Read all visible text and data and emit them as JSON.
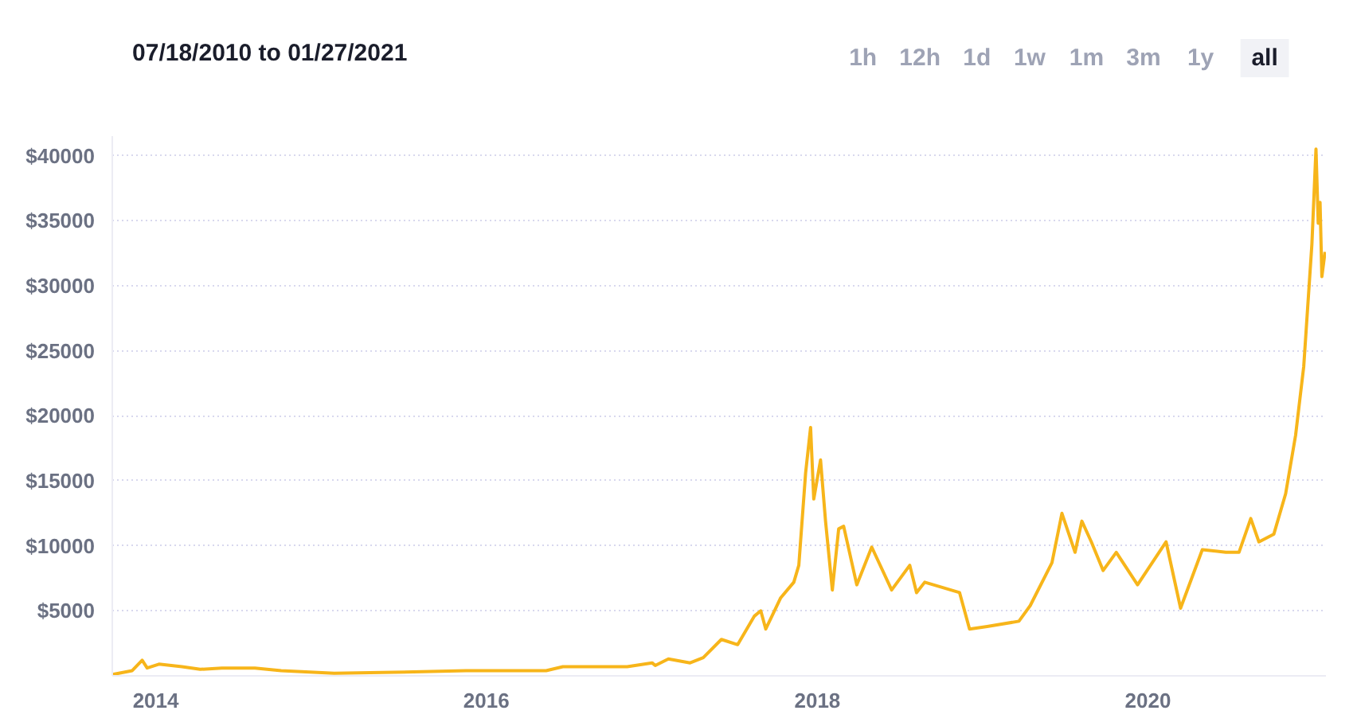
{
  "chart_data": {
    "type": "line",
    "title": "07/18/2010 to 01/27/2021",
    "annotations": [
      "1h",
      "12h",
      "1d",
      "1w",
      "1m",
      "3m",
      "1y",
      "all"
    ],
    "x": [
      "2013-09-27",
      "2013-11-10",
      "2013-12-02",
      "2013-12-13",
      "2014-01-08",
      "2014-02-28",
      "2014-04-09",
      "2014-05-27",
      "2014-08-08",
      "2014-10-05",
      "2015-01-30",
      "2015-07-24",
      "2015-11-17",
      "2016-05-12",
      "2016-06-18",
      "2016-11-07",
      "2017-01-01",
      "2017-01-08",
      "2017-02-06",
      "2017-03-26",
      "2017-04-24",
      "2017-06-03",
      "2017-07-09",
      "2017-08-15",
      "2017-08-29",
      "2017-09-09",
      "2017-10-12",
      "2017-11-10",
      "2017-11-21",
      "2017-12-06",
      "2017-12-17",
      "2017-12-24",
      "2018-01-08",
      "2018-01-19",
      "2018-02-03",
      "2018-02-17",
      "2018-02-28",
      "2018-03-29",
      "2018-05-01",
      "2018-06-14",
      "2018-07-24",
      "2018-08-08",
      "2018-08-26",
      "2018-11-11",
      "2018-12-03",
      "2019-01-11",
      "2019-03-22",
      "2019-04-16",
      "2019-06-03",
      "2019-06-25",
      "2019-07-24",
      "2019-08-08",
      "2019-08-29",
      "2019-09-24",
      "2019-10-23",
      "2019-12-09",
      "2020-02-10",
      "2020-03-13",
      "2020-04-30",
      "2020-06-21",
      "2020-07-20",
      "2020-08-15",
      "2020-09-02",
      "2020-10-05",
      "2020-10-31",
      "2020-11-22",
      "2020-12-10",
      "2020-12-28",
      "2021-01-06",
      "2021-01-11",
      "2021-01-15",
      "2021-01-19",
      "2021-01-26"
    ],
    "series": [
      {
        "color": "#f7b51a",
        "values": [
          100,
          400,
          1200,
          600,
          900,
          700,
          500,
          600,
          600,
          400,
          200,
          300,
          400,
          400,
          700,
          700,
          1000,
          800,
          1300,
          1000,
          1400,
          2800,
          2400,
          4600,
          5000,
          3600,
          6000,
          7200,
          8500,
          15600,
          19100,
          13600,
          16600,
          11900,
          6600,
          11300,
          11500,
          7000,
          9900,
          6600,
          8500,
          6400,
          7200,
          6400,
          3600,
          3800,
          4200,
          5400,
          8700,
          12500,
          9500,
          11900,
          10300,
          8100,
          9500,
          7000,
          10300,
          5200,
          9700,
          9500,
          9500,
          12100,
          10300,
          10900,
          14000,
          18500,
          23800,
          33200,
          40500,
          34800,
          36400,
          30700,
          32600
        ]
      }
    ],
    "xlim": [
      "2013-09-27",
      "2021-01-28"
    ],
    "xticks": [
      {
        "value": "2014-01-01",
        "label": "2014"
      },
      {
        "value": "2016-01-01",
        "label": "2016"
      },
      {
        "value": "2018-01-01",
        "label": "2018"
      },
      {
        "value": "2020-01-01",
        "label": "2020"
      }
    ],
    "ylim": [
      0,
      41500
    ],
    "yticks": [
      {
        "value": 5000,
        "label": "$5000"
      },
      {
        "value": 10000,
        "label": "$10000"
      },
      {
        "value": 15000,
        "label": "$15000"
      },
      {
        "value": 20000,
        "label": "$20000"
      },
      {
        "value": 25000,
        "label": "$25000"
      },
      {
        "value": 30000,
        "label": "$30000"
      },
      {
        "value": 35000,
        "label": "$35000"
      },
      {
        "value": 40000,
        "label": "$40000"
      }
    ],
    "grid": "y",
    "line_style": "solid"
  }
}
